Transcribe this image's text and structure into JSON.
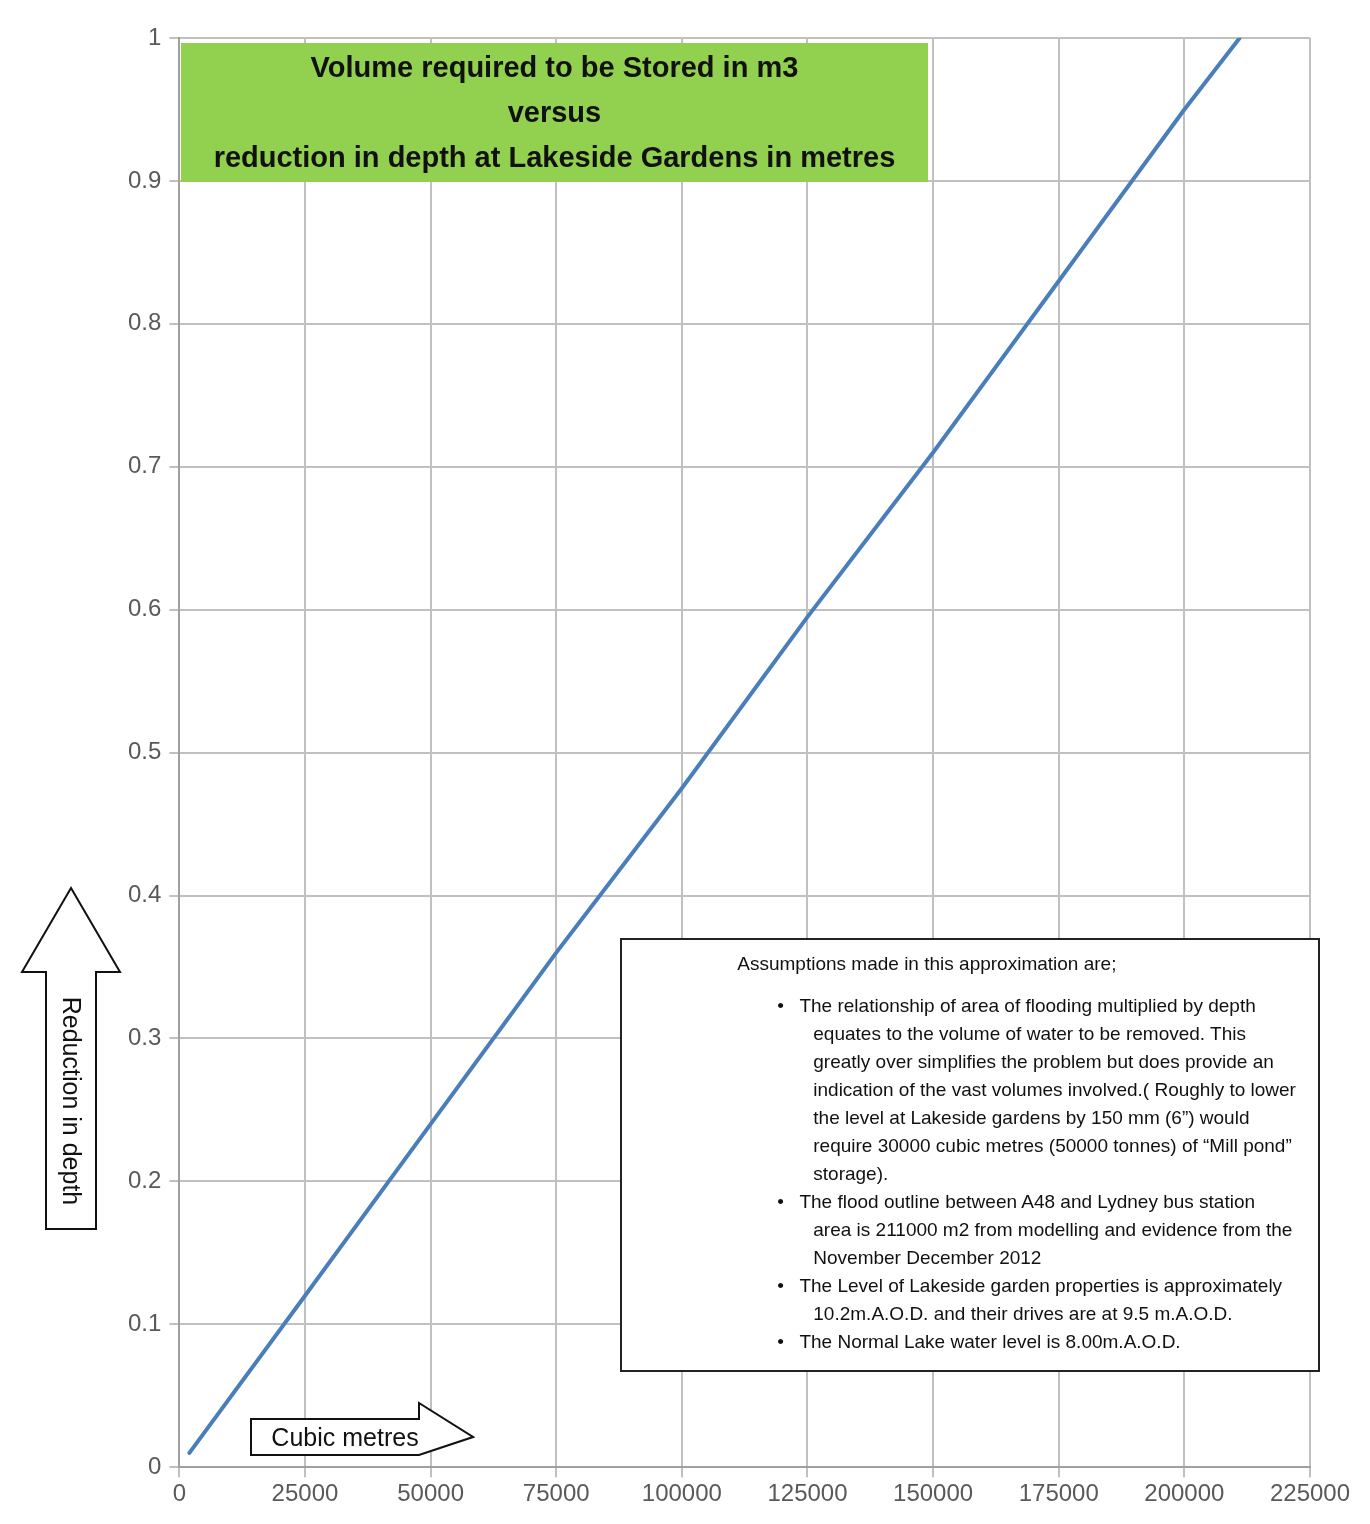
{
  "chart_data": {
    "type": "line",
    "title": "Volume required to be Stored in m3\nversus\nreduction in depth at Lakeside Gardens in metres",
    "xlabel": "Cubic metres",
    "ylabel": "Reduction in depth",
    "x": [
      2000,
      25000,
      50000,
      75000,
      100000,
      125000,
      150000,
      175000,
      200000,
      211000
    ],
    "series": [
      {
        "color": "#4a7ebb",
        "values": [
          0.01,
          0.12,
          0.24,
          0.36,
          0.475,
          0.595,
          0.71,
          0.83,
          0.95,
          1.0
        ]
      }
    ],
    "xlim": [
      0,
      225000
    ],
    "xticks": [
      0,
      25000,
      50000,
      75000,
      100000,
      125000,
      150000,
      175000,
      200000,
      225000
    ],
    "ylim": [
      0,
      1
    ],
    "yticks": [
      0,
      0.1,
      0.2,
      0.3,
      0.4,
      0.5,
      0.6,
      0.7,
      0.8,
      0.9,
      1
    ],
    "grid": true,
    "legend": false,
    "marker": "none",
    "line_style": "solid",
    "annotations": [
      "Assumptions made in this approximation are;",
      "•   The relationship of area of flooding multiplied by depth equates to the volume of water to be removed. This greatly over simplifies the problem but does provide an indication of the vast volumes involved.( Roughly to lower the level at Lakeside gardens by 150 mm (6”) would require 30000 cubic metres (50000 tonnes) of “Mill pond” storage).",
      "•   The flood outline between A48 and Lydney bus station area is 211000 m2 from modelling and evidence from the November December 2012",
      "•   The Level of Lakeside garden properties is approximately 10.2m.A.O.D. and their drives are at 9.5 m.A.O.D.",
      "•   The Normal Lake water level is 8.00m.A.O.D."
    ]
  }
}
